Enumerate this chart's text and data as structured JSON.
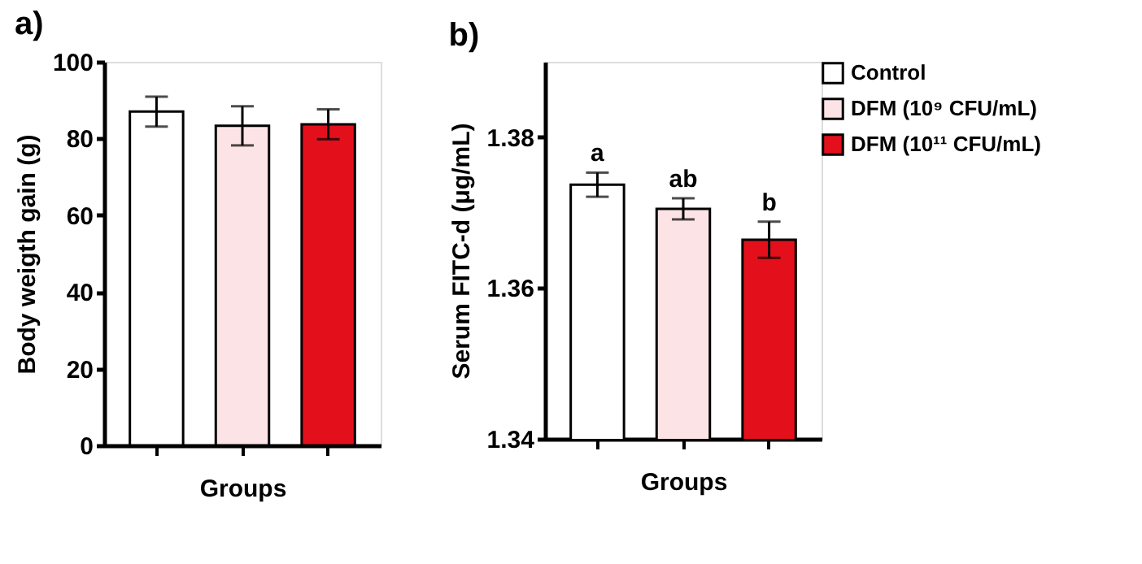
{
  "chart_data": [
    {
      "type": "bar",
      "title": "a)",
      "xlabel": "Groups",
      "ylabel": "Body weigth gain (g)",
      "categories": [
        null,
        null,
        null
      ],
      "values": [
        87.0,
        83.3,
        83.7
      ],
      "errors": [
        3.9,
        5.1,
        3.9
      ],
      "colors": [
        "#ffffff",
        "#fce4e6",
        "#e3101c"
      ],
      "ylim": [
        0,
        100
      ],
      "yticks": [
        0,
        20,
        40,
        60,
        80,
        100
      ],
      "grid": false,
      "tick_labels": "y"
    },
    {
      "type": "bar",
      "title": "b)",
      "xlabel": "Groups",
      "ylabel": "Serum FITC-d (μg/mL)",
      "categories": [
        null,
        null,
        null
      ],
      "series": [
        {
          "name": "Control",
          "color": "#ffffff",
          "values": [
            1.3737,
            null,
            null
          ],
          "errors": [
            0.0016,
            null,
            null
          ]
        },
        {
          "name": "DFM (10⁹ CFU/mL)",
          "color": "#fce4e6",
          "values": [
            null,
            1.3705,
            null
          ],
          "errors": [
            null,
            0.0014,
            null
          ]
        },
        {
          "name": "DFM (10¹¹ CFU/mL)",
          "color": "#e3101c",
          "values": [
            null,
            null,
            1.3664
          ],
          "errors": [
            null,
            null,
            0.0024
          ]
        }
      ],
      "ylim": [
        1.34,
        1.39
      ],
      "yticks": [
        1.34,
        1.36,
        1.38
      ],
      "grid": false,
      "legend": "top right",
      "tick_labels": "y",
      "annotations": [
        {
          "text": "a",
          "y": 1.3753
        },
        {
          "text": "ab",
          "y": 1.3719
        },
        {
          "text": "b",
          "y": 1.3688
        }
      ]
    }
  ]
}
